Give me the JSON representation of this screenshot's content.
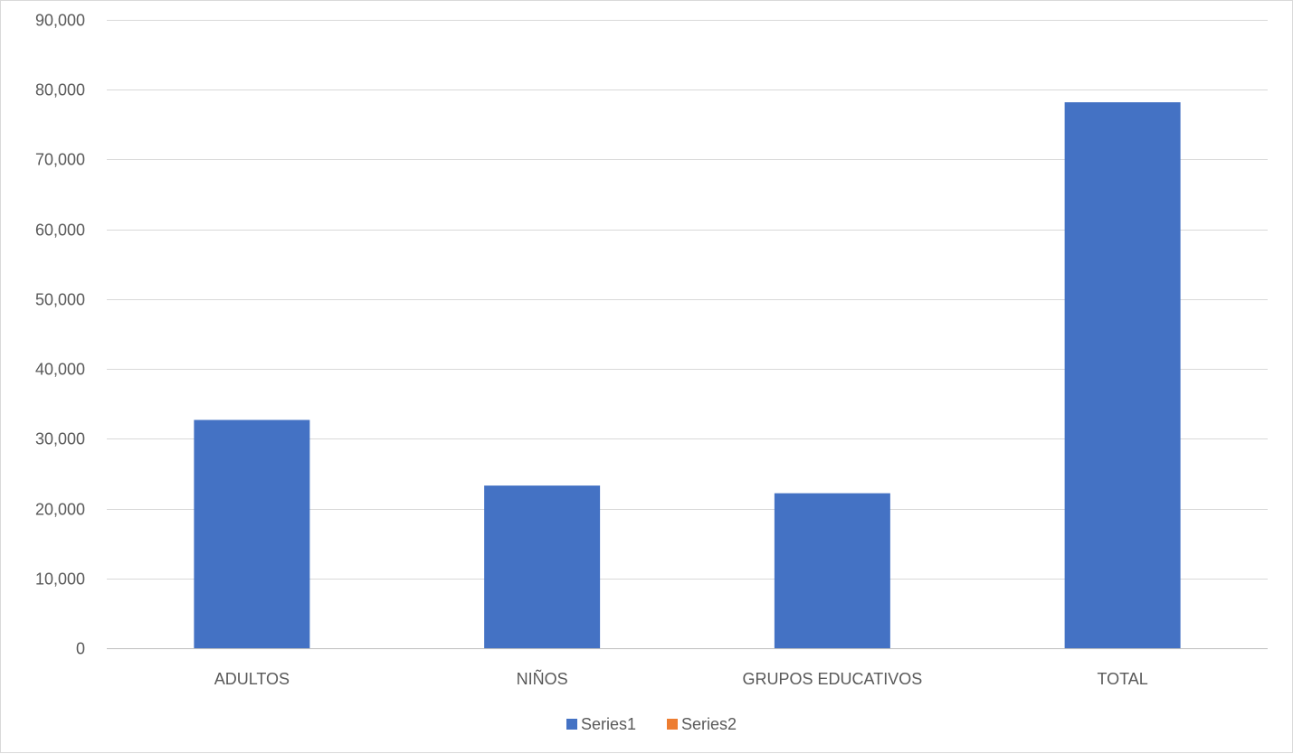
{
  "chart_data": {
    "type": "bar",
    "categories": [
      "ADULTOS",
      "NIÑOS",
      "GRUPOS EDUCATIVOS",
      "TOTAL"
    ],
    "series": [
      {
        "name": "Series1",
        "values": [
          32700,
          23300,
          22200,
          78200
        ],
        "color": "#4472C4"
      },
      {
        "name": "Series2",
        "values": [
          0,
          0,
          0,
          0
        ],
        "color": "#ED7D31"
      }
    ],
    "ylim": [
      0,
      90000
    ],
    "yticks": [
      0,
      10000,
      20000,
      30000,
      40000,
      50000,
      60000,
      70000,
      80000,
      90000
    ],
    "ytick_labels": [
      "0",
      "10,000",
      "20,000",
      "30,000",
      "40,000",
      "50,000",
      "60,000",
      "70,000",
      "80,000",
      "90,000"
    ],
    "title": "",
    "xlabel": "",
    "ylabel": "",
    "grid": true,
    "legend_position": "bottom"
  }
}
